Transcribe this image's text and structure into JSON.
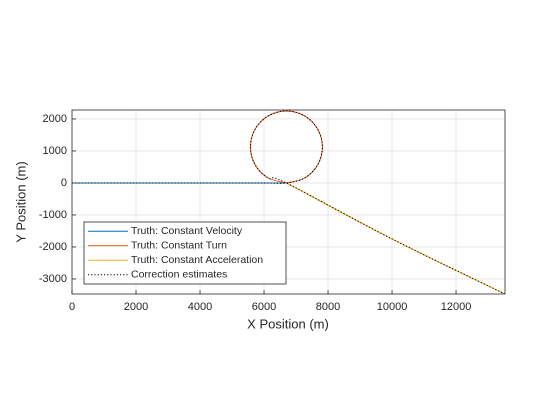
{
  "chart_data": {
    "type": "line",
    "xlabel": "X Position (m)",
    "ylabel": "Y Position (m)",
    "xlim": [
      0,
      13530
    ],
    "ylim": [
      -3470,
      2280
    ],
    "xticks": [
      0,
      2000,
      4000,
      6000,
      8000,
      10000,
      12000
    ],
    "yticks": [
      -3000,
      -2000,
      -1000,
      0,
      1000,
      2000
    ],
    "grid": true,
    "legend_position": "lower left",
    "series": [
      {
        "name": "Truth: Constant Velocity",
        "color": "#0072BD",
        "style": "solid",
        "x": [
          0,
          2000,
          4000,
          6000,
          6700
        ],
        "values": [
          0,
          0,
          0,
          0,
          0
        ]
      },
      {
        "name": "Truth: Constant Turn",
        "color": "#D95319",
        "style": "solid",
        "x": [
          6700,
          7263,
          7674,
          7825,
          7674,
          7263,
          6700,
          6138,
          5726,
          5575,
          5726,
          6138,
          6700
        ],
        "values": [
          0,
          151,
          563,
          1125,
          1688,
          2099,
          2250,
          2099,
          1688,
          1125,
          563,
          151,
          0
        ]
      },
      {
        "name": "Truth: Constant Acceleration",
        "color": "#EDB120",
        "style": "solid",
        "x": [
          6700,
          10000,
          13530
        ],
        "values": [
          0,
          -1750,
          -3470
        ]
      },
      {
        "name": "Correction estimates",
        "color": "#000000",
        "style": "dotted",
        "x": [
          0,
          2000,
          4000,
          6000,
          6700,
          7263,
          7674,
          7825,
          7674,
          7263,
          6700,
          6138,
          5726,
          5575,
          5726,
          6138,
          6700,
          10000,
          13530
        ],
        "values": [
          0,
          0,
          0,
          0,
          0,
          151,
          563,
          1125,
          1688,
          2099,
          2250,
          2099,
          1688,
          1125,
          563,
          151,
          0,
          -1750,
          -3470
        ]
      }
    ]
  }
}
